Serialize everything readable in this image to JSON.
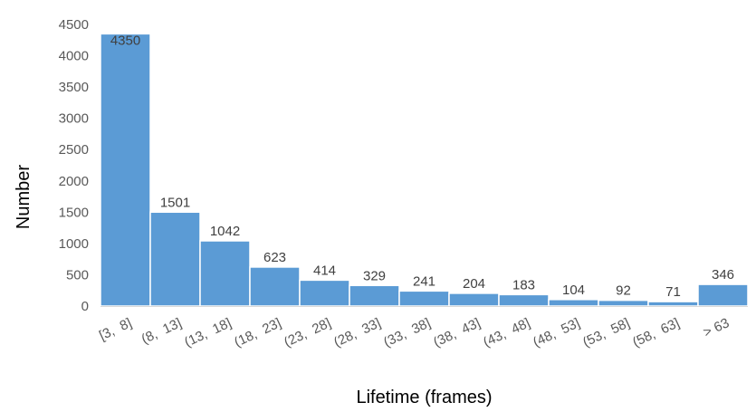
{
  "chart_data": {
    "type": "bar",
    "categories": [
      "[3,  8]",
      "(8,  13]",
      "(13,  18]",
      "(18,  23]",
      "(23,  28]",
      "(28,  33]",
      "(33,  38]",
      "(38,  43]",
      "(43,  48]",
      "(48,  53]",
      "(53,  58]",
      "(58,  63]",
      "> 63"
    ],
    "values": [
      4350,
      1501,
      1042,
      623,
      414,
      329,
      241,
      204,
      183,
      104,
      92,
      71,
      346
    ],
    "xlabel": "Lifetime (frames)",
    "ylabel": "Number",
    "ylim": [
      0,
      4500
    ],
    "yticks": [
      "0",
      "500",
      "1000",
      "1500",
      "2000",
      "2500",
      "3000",
      "3500",
      "4000",
      "4500"
    ],
    "bar_color": "#5b9bd5",
    "grid": false,
    "legend": "none"
  }
}
